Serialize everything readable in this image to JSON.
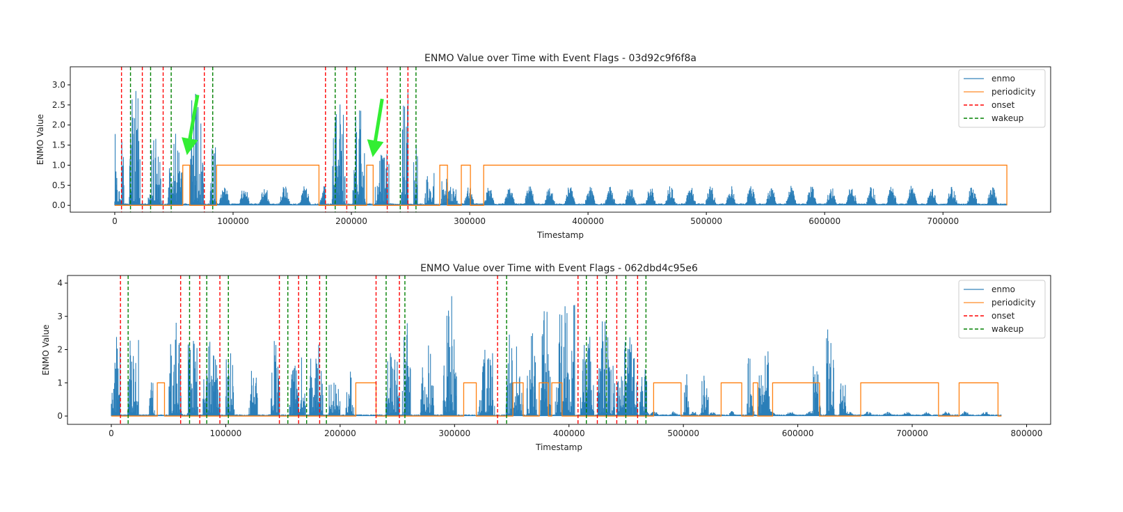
{
  "chart_data": [
    {
      "type": "line",
      "title": "ENMO Value over Time with Event Flags - 03d92c9f6f8a",
      "xlabel": "Timestamp",
      "ylabel": "ENMO Value",
      "xlim": [
        -37600,
        791000
      ],
      "ylim": [
        -0.17,
        3.45
      ],
      "xticks": [
        0,
        100000,
        200000,
        300000,
        400000,
        500000,
        600000,
        700000
      ],
      "xtick_labels": [
        "0",
        "100000",
        "200000",
        "300000",
        "400000",
        "500000",
        "600000",
        "700000"
      ],
      "yticks": [
        0,
        0.5,
        1,
        1.5,
        2,
        2.5,
        3
      ],
      "ytick_labels": [
        "0.0",
        "0.5",
        "1.0",
        "1.5",
        "2.0",
        "2.5",
        "3.0"
      ],
      "legend": {
        "position": "top-right",
        "entries": [
          "enmo",
          "periodicity",
          "onset",
          "wakeup"
        ]
      },
      "colors": {
        "enmo": "#1f77b4",
        "periodicity": "#ff7f0e",
        "onset": "#ff0000",
        "wakeup": "#008000",
        "arrow": "#33ee33"
      },
      "x_end": 754000,
      "enmo_bursts": [
        [
          0,
          8000,
          2.3
        ],
        [
          12000,
          22000,
          3.3
        ],
        [
          28000,
          40000,
          1.7
        ],
        [
          45000,
          57000,
          2.0
        ],
        [
          63000,
          75000,
          3.0
        ],
        [
          80000,
          86000,
          1.6
        ],
        [
          183000,
          195000,
          2.6
        ],
        [
          201000,
          212000,
          2.4
        ],
        [
          220000,
          232000,
          1.3
        ],
        [
          242000,
          248000,
          2.9
        ],
        [
          252000,
          256000,
          1.6
        ],
        [
          262000,
          270000,
          0.9
        ],
        [
          276000,
          290000,
          0.8
        ]
      ],
      "enmo_quiet_humps": {
        "peak": 0.5,
        "period": 17000,
        "ranges": [
          [
            88000,
            178000
          ],
          [
            295000,
            754000
          ]
        ]
      },
      "periodicity_on": [
        [
          57500,
          63400
        ],
        [
          86100,
          172600
        ],
        [
          212900,
          218400
        ],
        [
          274700,
          281200
        ],
        [
          292900,
          300600
        ],
        [
          311800,
          754000
        ]
      ],
      "onset": [
        5700,
        23300,
        40900,
        75700,
        178100,
        196100,
        230300,
        247800
      ],
      "wakeup": [
        13300,
        30300,
        47700,
        82800,
        186300,
        203300,
        241300,
        254600
      ],
      "arrows": [
        {
          "tail": [
            70000,
            2.75
          ],
          "tip": [
            61000,
            1.25
          ]
        },
        {
          "tail": [
            226000,
            2.65
          ],
          "tip": [
            218000,
            1.2
          ]
        }
      ]
    },
    {
      "type": "line",
      "title": "ENMO Value over Time with Event Flags - 062dbd4c95e6",
      "xlabel": "Timestamp",
      "ylabel": "ENMO Value",
      "xlim": [
        -38300,
        821000
      ],
      "ylim": [
        -0.25,
        4.23
      ],
      "xticks": [
        0,
        100000,
        200000,
        300000,
        400000,
        500000,
        600000,
        700000,
        800000
      ],
      "xtick_labels": [
        "0",
        "100000",
        "200000",
        "300000",
        "400000",
        "500000",
        "600000",
        "700000",
        "800000"
      ],
      "yticks": [
        0,
        1,
        2,
        3,
        4
      ],
      "ytick_labels": [
        "0",
        "1",
        "2",
        "3",
        "4"
      ],
      "legend": {
        "position": "top-right",
        "entries": [
          "enmo",
          "periodicity",
          "onset",
          "wakeup"
        ]
      },
      "colors": {
        "enmo": "#1f77b4",
        "periodicity": "#ff7f0e",
        "onset": "#ff0000",
        "wakeup": "#008000"
      },
      "x_end": 778000,
      "enmo_bursts": [
        [
          0,
          8000,
          2.5
        ],
        [
          14000,
          24000,
          2.3
        ],
        [
          33000,
          38000,
          1.4
        ],
        [
          50000,
          62000,
          2.8
        ],
        [
          66000,
          76000,
          2.6
        ],
        [
          80000,
          95000,
          2.2
        ],
        [
          100000,
          108000,
          2.0
        ],
        [
          120000,
          128000,
          1.5
        ],
        [
          138000,
          147000,
          2.3
        ],
        [
          155000,
          170000,
          1.8
        ],
        [
          172000,
          185000,
          2.2
        ],
        [
          190000,
          200000,
          1.2
        ],
        [
          205000,
          212000,
          1.8
        ],
        [
          240000,
          252000,
          2.1
        ],
        [
          254000,
          262000,
          2.9
        ],
        [
          270000,
          282000,
          2.3
        ],
        [
          290000,
          302000,
          3.7
        ],
        [
          320000,
          335000,
          2.0
        ],
        [
          345000,
          360000,
          2.6
        ],
        [
          363000,
          372000,
          3.0
        ],
        [
          375000,
          384000,
          4.0
        ],
        [
          388000,
          405000,
          3.5
        ],
        [
          410000,
          422000,
          2.5
        ],
        [
          425000,
          440000,
          2.9
        ],
        [
          442000,
          460000,
          2.5
        ],
        [
          462000,
          470000,
          1.5
        ],
        [
          500000,
          505000,
          1.3
        ],
        [
          515000,
          522000,
          1.3
        ],
        [
          555000,
          562000,
          1.9
        ],
        [
          565000,
          577000,
          2.0
        ],
        [
          612000,
          620000,
          1.6
        ],
        [
          625000,
          632000,
          3.0
        ],
        [
          636000,
          642000,
          1.2
        ]
      ],
      "enmo_quiet_humps": {
        "peak": 0.15,
        "period": 17000,
        "ranges": [
          [
            470000,
            778000
          ]
        ]
      },
      "periodicity_on": [
        [
          40200,
          46500
        ],
        [
          213700,
          231400
        ],
        [
          308000,
          319000
        ],
        [
          351000,
          360000
        ],
        [
          374000,
          382000
        ],
        [
          385000,
          394000
        ],
        [
          474000,
          498000
        ],
        [
          533000,
          551000
        ],
        [
          561000,
          565000
        ],
        [
          578000,
          619000
        ],
        [
          655000,
          723000
        ],
        [
          741000,
          775000
        ]
      ],
      "onset": [
        8000,
        60600,
        77300,
        94900,
        146900,
        163700,
        182100,
        231400,
        251800,
        337600,
        407900,
        424800,
        441800,
        460000
      ],
      "wakeup": [
        14700,
        68400,
        83400,
        102300,
        154300,
        170700,
        188000,
        240200,
        256600,
        345500,
        415200,
        432700,
        449700,
        467300
      ],
      "arrows": []
    }
  ]
}
